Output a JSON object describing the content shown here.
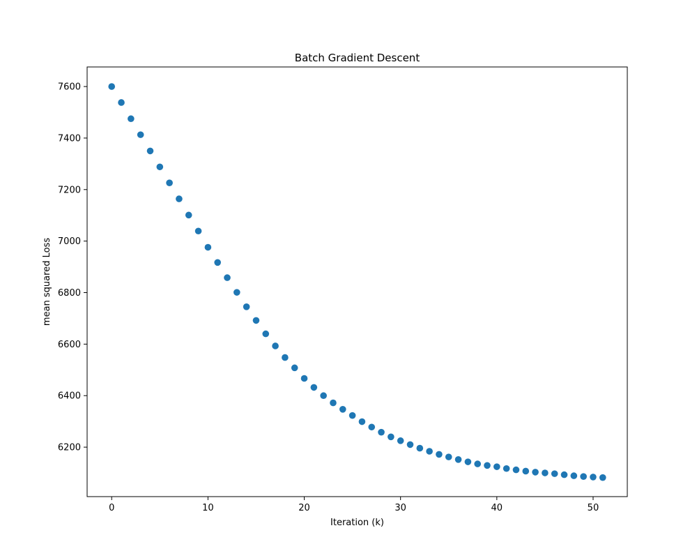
{
  "chart_data": {
    "type": "scatter",
    "title": "Batch Gradient Descent",
    "xlabel": "Iteration (k)",
    "ylabel": "mean squared Loss",
    "xlim": [
      -2.55,
      53.55
    ],
    "ylim": [
      6008,
      7676
    ],
    "xticks": [
      "0",
      "10",
      "20",
      "30",
      "40",
      "50"
    ],
    "yticks": [
      "6200",
      "6400",
      "6600",
      "6800",
      "7000",
      "7200",
      "7400",
      "7600"
    ],
    "grid": false,
    "marker_color": "#1f77b4",
    "series": [
      {
        "x": [
          0,
          1,
          2,
          3,
          4,
          5,
          6,
          7,
          8,
          9,
          10,
          11,
          12,
          13,
          14,
          15,
          16,
          17,
          18,
          19,
          20,
          21,
          22,
          23,
          24,
          25,
          26,
          27,
          28,
          29,
          30,
          31,
          32,
          33,
          34,
          35,
          36,
          37,
          38,
          39,
          40,
          41,
          42,
          43,
          44,
          45,
          46,
          47,
          48,
          49,
          50,
          51
        ],
        "y": [
          7600,
          7538,
          7475,
          7413,
          7350,
          7288,
          7226,
          7164,
          7101,
          7039,
          6976,
          6917,
          6858,
          6801,
          6745,
          6692,
          6640,
          6593,
          6548,
          6508,
          6467,
          6432,
          6400,
          6372,
          6347,
          6323,
          6299,
          6278,
          6258,
          6240,
          6225,
          6210,
          6196,
          6184,
          6172,
          6162,
          6152,
          6143,
          6135,
          6129,
          6124,
          6117,
          6112,
          6107,
          6103,
          6100,
          6097,
          6093,
          6089,
          6086,
          6084,
          6082
        ]
      }
    ]
  }
}
